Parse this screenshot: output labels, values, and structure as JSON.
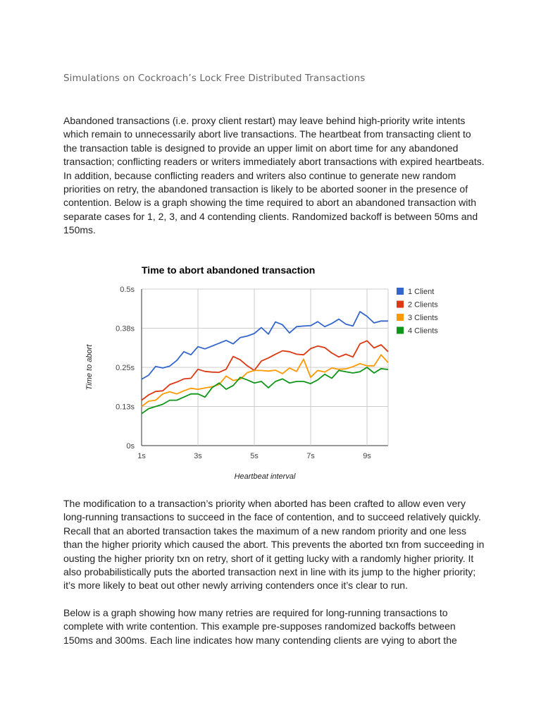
{
  "document": {
    "heading": "Simulations on Cockroach’s Lock Free Distributed Transactions",
    "paragraph_1": "Abandoned transactions (i.e. proxy client restart) may leave behind high-priority write intents which remain to unnecessarily abort live transactions. The heartbeat from transacting client to the transaction table is designed to provide an upper limit on abort time for any abandoned transaction; conflicting readers or writers immediately abort transactions with expired heartbeats. In addition, because conflicting readers and writers also continue to generate new random priorities on retry, the abandoned transaction is likely to be aborted sooner in the presence of contention. Below is a graph showing the time required to abort an abandoned transaction with separate cases for 1, 2, 3, and 4 contending clients. Randomized backoff is between 50ms and 150ms.",
    "paragraph_2": "The modification to a transaction’s priority when aborted has been crafted to allow even very long-running transactions to succeed in the face of contention, and to succeed relatively quickly. Recall that an aborted transaction takes the maximum of a new random priority and one less than the higher priority which caused the abort. This prevents the aborted txn from succeeding in ousting the higher priority txn on retry, short of it getting lucky with a randomly higher priority. It also probabilistically puts the aborted transaction next in line with its jump to the higher priority; it’s more likely to beat out other newly arriving contenders once it’s clear to run.",
    "paragraph_3": "Below is a graph showing how many retries are required for long-running transactions to complete with write contention. This example pre-supposes randomized backoffs between 150ms and 300ms. Each line indicates how many contending clients are vying to abort the"
  },
  "chart_data": {
    "type": "line",
    "title": "Time to abort abandoned transaction",
    "xlabel": "Heartbeat interval",
    "ylabel": "Time to abort",
    "xlim": [
      1,
      9.75
    ],
    "ylim": [
      0,
      0.5
    ],
    "x_ticks": [
      1,
      3,
      5,
      7,
      9
    ],
    "x_tick_labels": [
      "1s",
      "3s",
      "5s",
      "7s",
      "9s"
    ],
    "y_ticks": [
      0,
      0.125,
      0.25,
      0.375,
      0.5
    ],
    "y_tick_labels": [
      "0s",
      "0.13s",
      "0.25s",
      "0.38s",
      "0.5s"
    ],
    "grid": true,
    "legend_position": "right",
    "x": [
      1,
      1.25,
      1.5,
      1.75,
      2,
      2.25,
      2.5,
      2.75,
      3,
      3.25,
      3.5,
      3.75,
      4,
      4.25,
      4.5,
      4.75,
      5,
      5.25,
      5.5,
      5.75,
      6,
      6.25,
      6.5,
      6.75,
      7,
      7.25,
      7.5,
      7.75,
      8,
      8.25,
      8.5,
      8.75,
      9,
      9.25,
      9.5,
      9.75
    ],
    "series": [
      {
        "name": "1 Client",
        "color": "#3366cc",
        "values": [
          0.212,
          0.225,
          0.253,
          0.248,
          0.254,
          0.272,
          0.3,
          0.29,
          0.316,
          0.309,
          0.318,
          0.327,
          0.336,
          0.325,
          0.345,
          0.35,
          0.358,
          0.377,
          0.356,
          0.395,
          0.386,
          0.36,
          0.38,
          0.382,
          0.383,
          0.396,
          0.38,
          0.39,
          0.404,
          0.388,
          0.382,
          0.428,
          0.413,
          0.392,
          0.398,
          0.398
        ]
      },
      {
        "name": "2 Clients",
        "color": "#dc3912",
        "values": [
          0.145,
          0.162,
          0.173,
          0.175,
          0.195,
          0.203,
          0.213,
          0.215,
          0.244,
          0.237,
          0.235,
          0.234,
          0.244,
          0.285,
          0.274,
          0.255,
          0.24,
          0.27,
          0.28,
          0.292,
          0.303,
          0.3,
          0.292,
          0.29,
          0.31,
          0.318,
          0.313,
          0.296,
          0.283,
          0.292,
          0.283,
          0.325,
          0.335,
          0.312,
          0.322,
          0.3
        ]
      },
      {
        "name": "3 Clients",
        "color": "#ff9900",
        "values": [
          0.125,
          0.142,
          0.145,
          0.165,
          0.172,
          0.165,
          0.175,
          0.183,
          0.18,
          0.184,
          0.188,
          0.195,
          0.222,
          0.208,
          0.212,
          0.233,
          0.24,
          0.24,
          0.238,
          0.241,
          0.23,
          0.248,
          0.237,
          0.276,
          0.218,
          0.24,
          0.235,
          0.248,
          0.244,
          0.245,
          0.252,
          0.262,
          0.255,
          0.255,
          0.29,
          0.265
        ]
      },
      {
        "name": "4 Clients",
        "color": "#109618",
        "values": [
          0.102,
          0.118,
          0.125,
          0.132,
          0.145,
          0.145,
          0.155,
          0.165,
          0.165,
          0.155,
          0.185,
          0.2,
          0.18,
          0.192,
          0.218,
          0.21,
          0.2,
          0.205,
          0.185,
          0.205,
          0.213,
          0.2,
          0.205,
          0.205,
          0.198,
          0.21,
          0.228,
          0.215,
          0.24,
          0.236,
          0.232,
          0.236,
          0.25,
          0.232,
          0.246,
          0.243
        ]
      }
    ]
  }
}
